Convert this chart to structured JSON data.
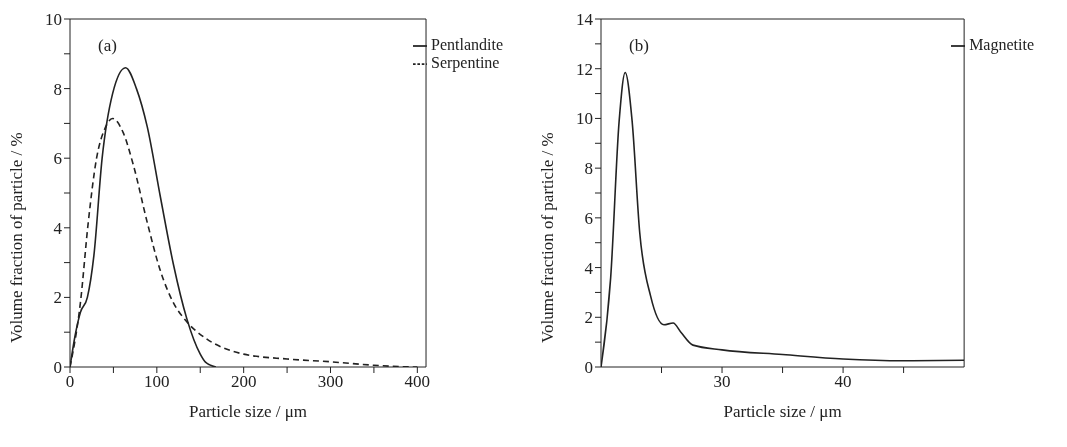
{
  "chart_data": [
    {
      "type": "line",
      "xlabel": "Particle size / μm",
      "ylabel": "Volume fraction of particle / %",
      "annotations": [
        "(a)"
      ],
      "xlim": [
        0,
        410
      ],
      "xticks": [
        0,
        {
          "value": 50,
          "label": null
        },
        100,
        {
          "value": 150,
          "label": null
        },
        200,
        {
          "value": 250,
          "label": null
        },
        300,
        {
          "value": 350,
          "label": null
        },
        400
      ],
      "ylim": [
        0,
        10
      ],
      "yticks": [
        0,
        {
          "value": 1,
          "label": null
        },
        2,
        {
          "value": 3,
          "label": null
        },
        4,
        {
          "value": 5,
          "label": null
        },
        6,
        {
          "value": 7,
          "label": null
        },
        8,
        {
          "value": 9,
          "label": null
        },
        10
      ],
      "legend": "top right",
      "grid": false,
      "series": [
        {
          "name": "Serpentine",
          "color": "#222222",
          "line_style": "dashed",
          "x": [
            0,
            12,
            21,
            30.6,
            40,
            49,
            61,
            73,
            89,
            104,
            119,
            134.5,
            156,
            186.5,
            200,
            250,
            300,
            350,
            380,
            400
          ],
          "values": [
            0,
            1.85,
            4.15,
            6.0,
            6.84,
            7.14,
            6.75,
            5.8,
            4.15,
            2.77,
            1.85,
            1.3,
            0.83,
            0.46,
            0.37,
            0.23,
            0.15,
            0.05,
            0.01,
            0
          ]
        },
        {
          "name": "Pentlandite",
          "color": "#222222",
          "line_style": "solid",
          "x": [
            0,
            6,
            12,
            20,
            27.5,
            37,
            49,
            64,
            76.5,
            89,
            104,
            119,
            134.5,
            150,
            156,
            168
          ],
          "values": [
            0,
            0.92,
            1.57,
            2.0,
            3.2,
            6.0,
            7.85,
            8.6,
            8.0,
            6.9,
            4.9,
            2.96,
            1.39,
            0.37,
            0.14,
            0
          ]
        }
      ]
    },
    {
      "type": "line",
      "xlabel": "Particle size / μm",
      "ylabel": "Volume fraction of particle / %",
      "annotations": [
        "(b)"
      ],
      "xlim": [
        20,
        50
      ],
      "xticks": [
        {
          "value": 25,
          "label": null
        },
        30,
        {
          "value": 35,
          "label": null
        },
        40,
        {
          "value": 45,
          "label": null
        }
      ],
      "ylim": [
        0,
        14
      ],
      "yticks": [
        0,
        {
          "value": 1,
          "label": null
        },
        2,
        {
          "value": 3,
          "label": null
        },
        4,
        {
          "value": 5,
          "label": null
        },
        6,
        {
          "value": 7,
          "label": null
        },
        8,
        {
          "value": 9,
          "label": null
        },
        10,
        {
          "value": 11,
          "label": null
        },
        12,
        {
          "value": 13,
          "label": null
        },
        14
      ],
      "legend": "top right",
      "grid": false,
      "series": [
        {
          "name": "Magnetite",
          "color": "#222222",
          "line_style": "solid",
          "x": [
            20,
            20.8,
            21.5,
            22.0,
            22.57,
            23.2,
            24.1,
            25.2,
            25.96,
            26.6,
            27.6,
            30,
            35,
            40,
            45,
            50
          ],
          "values": [
            0,
            3.6,
            9.9,
            11.85,
            9.9,
            5.4,
            2.85,
            1.7,
            1.77,
            1.4,
            0.88,
            0.69,
            0.5,
            0.32,
            0.25,
            0.27
          ]
        }
      ]
    }
  ]
}
